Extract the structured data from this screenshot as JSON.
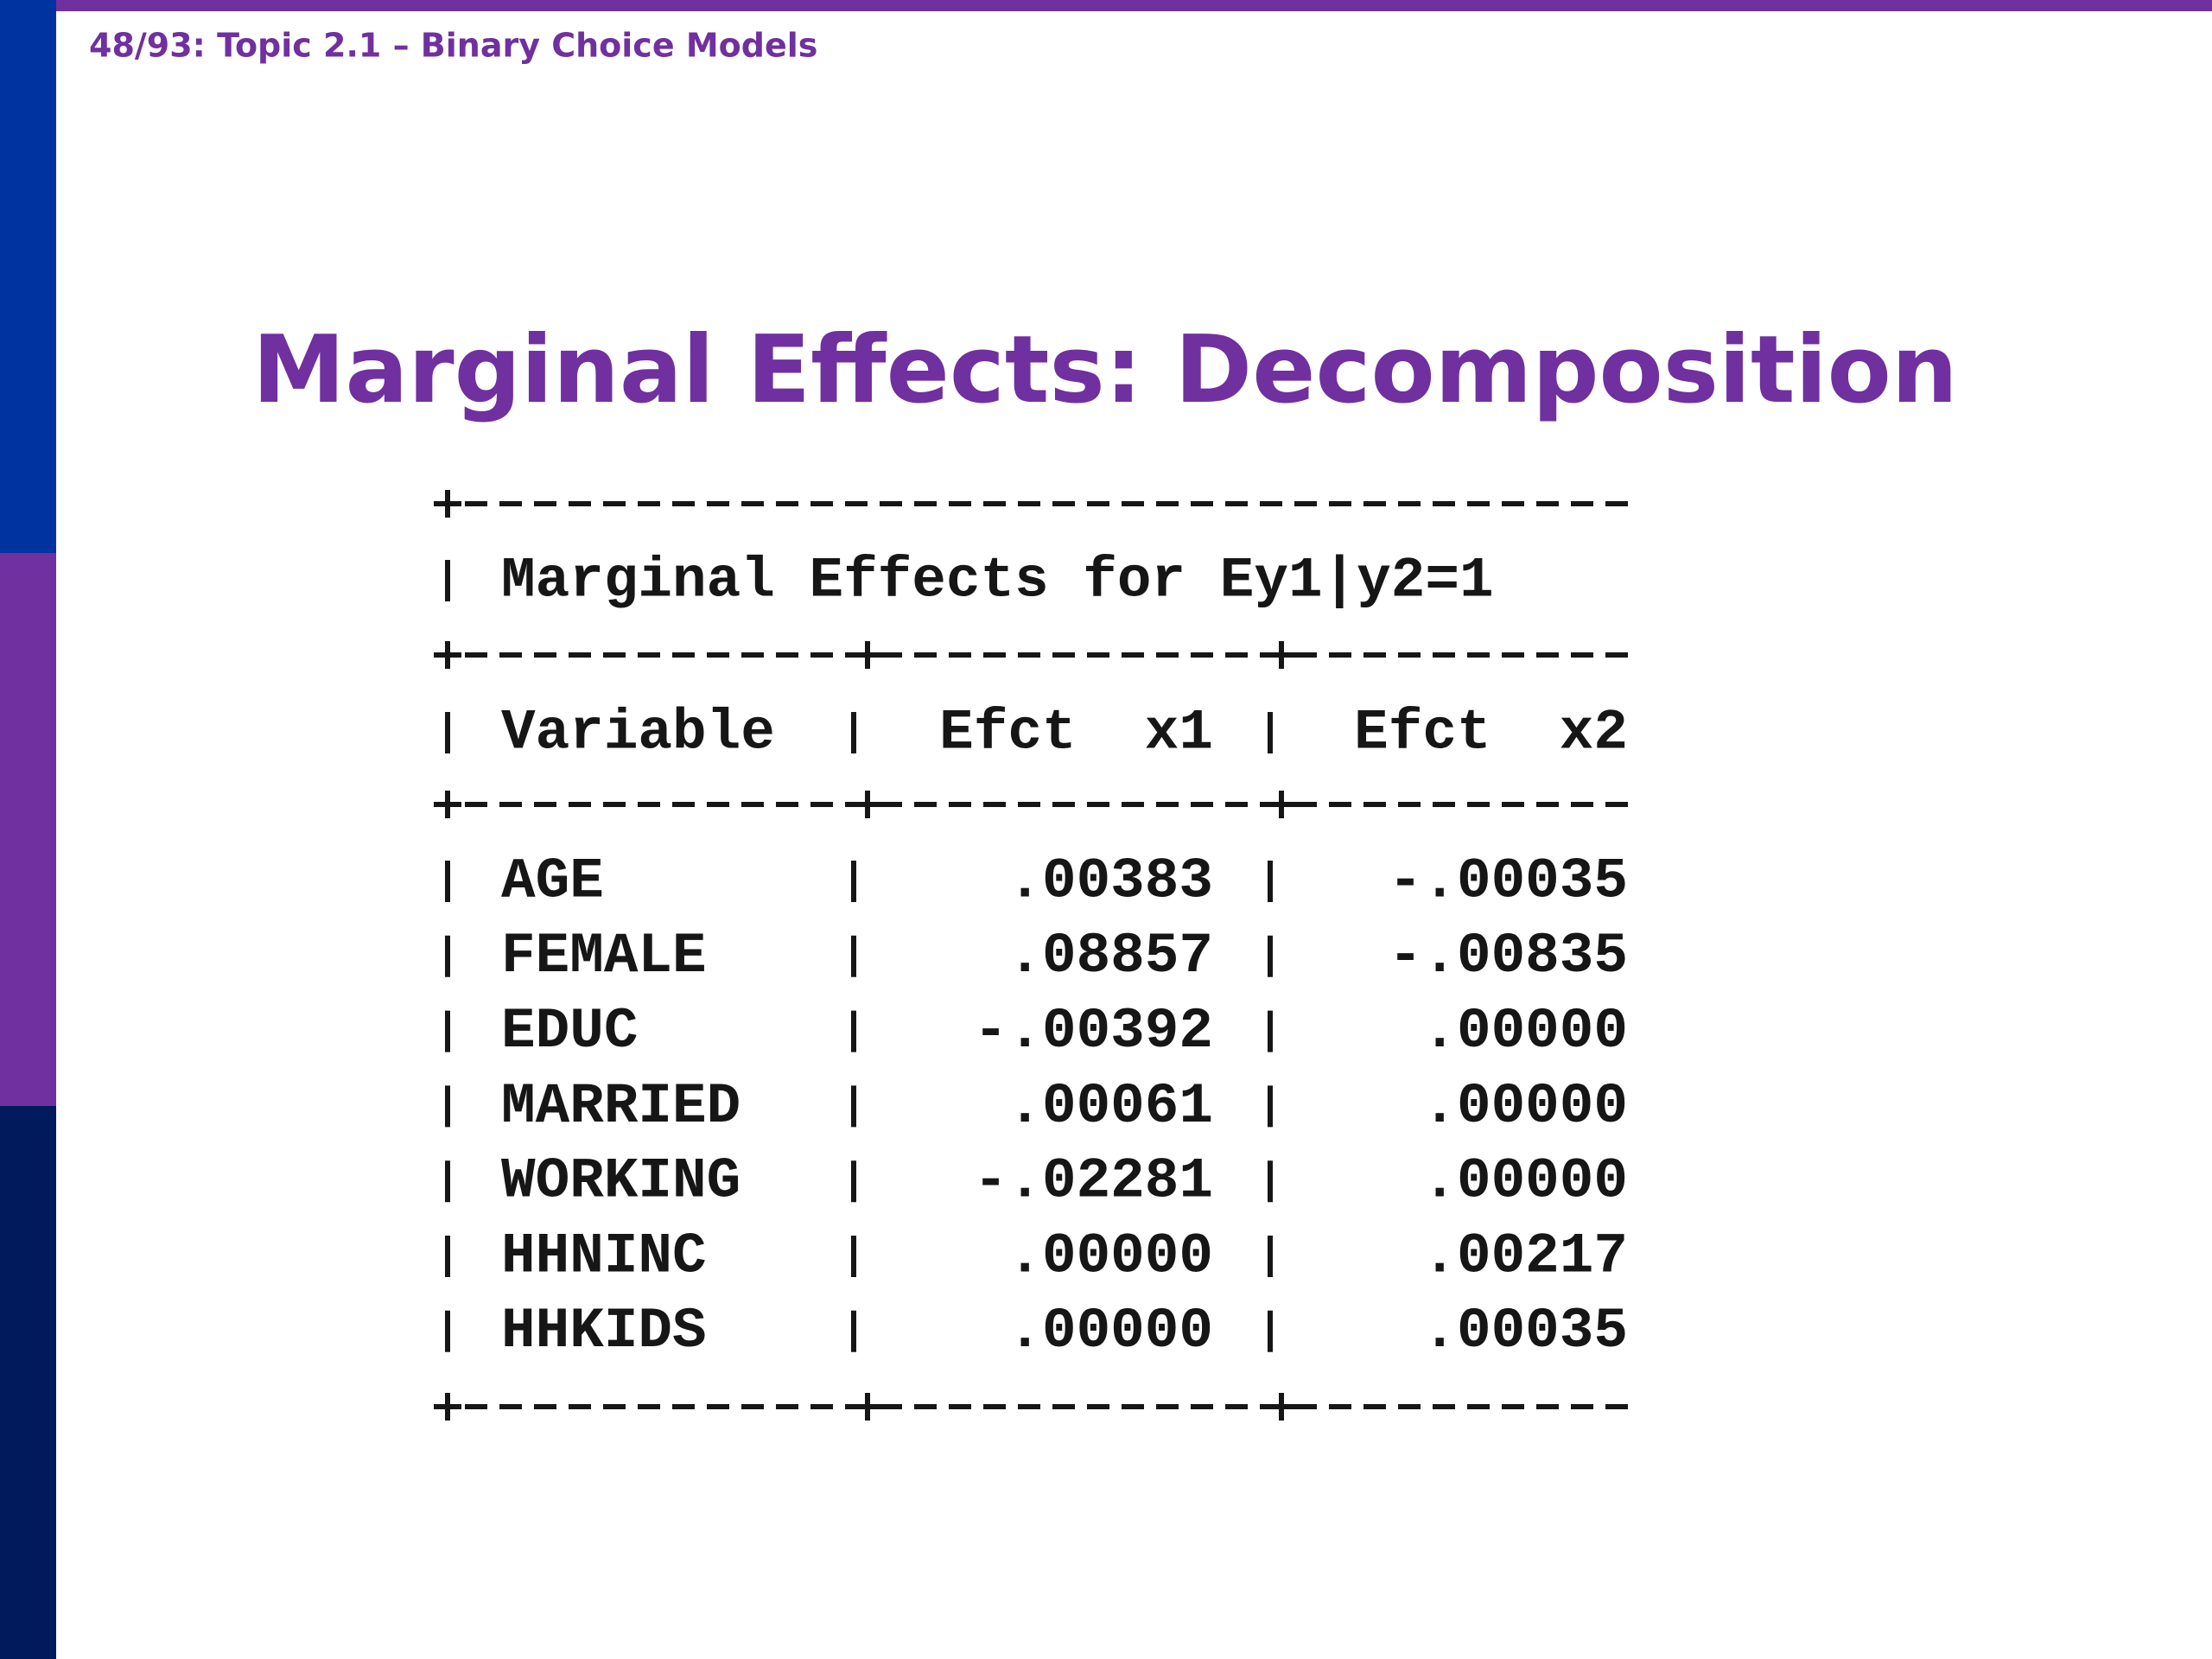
{
  "header": {
    "slide_label": "48/93: Topic 2.1 – Binary Choice Models"
  },
  "title": "Marginal Effects: Decomposition",
  "table": {
    "caption": "Marginal Effects for Ey1|y2=1",
    "columns": [
      "Variable",
      "Efct  x1",
      "Efct  x2"
    ],
    "rows": [
      [
        "AGE",
        ".00383",
        "-.00035"
      ],
      [
        "FEMALE",
        ".08857",
        "-.00835"
      ],
      [
        "EDUC",
        "-.00392",
        ".00000"
      ],
      [
        "MARRIED",
        ".00061",
        ".00000"
      ],
      [
        "WORKING",
        "-.02281",
        ".00000"
      ],
      [
        "HHNINC",
        ".00000",
        ".00217"
      ],
      [
        "HHKIDS",
        ".00000",
        ".00035"
      ]
    ]
  }
}
